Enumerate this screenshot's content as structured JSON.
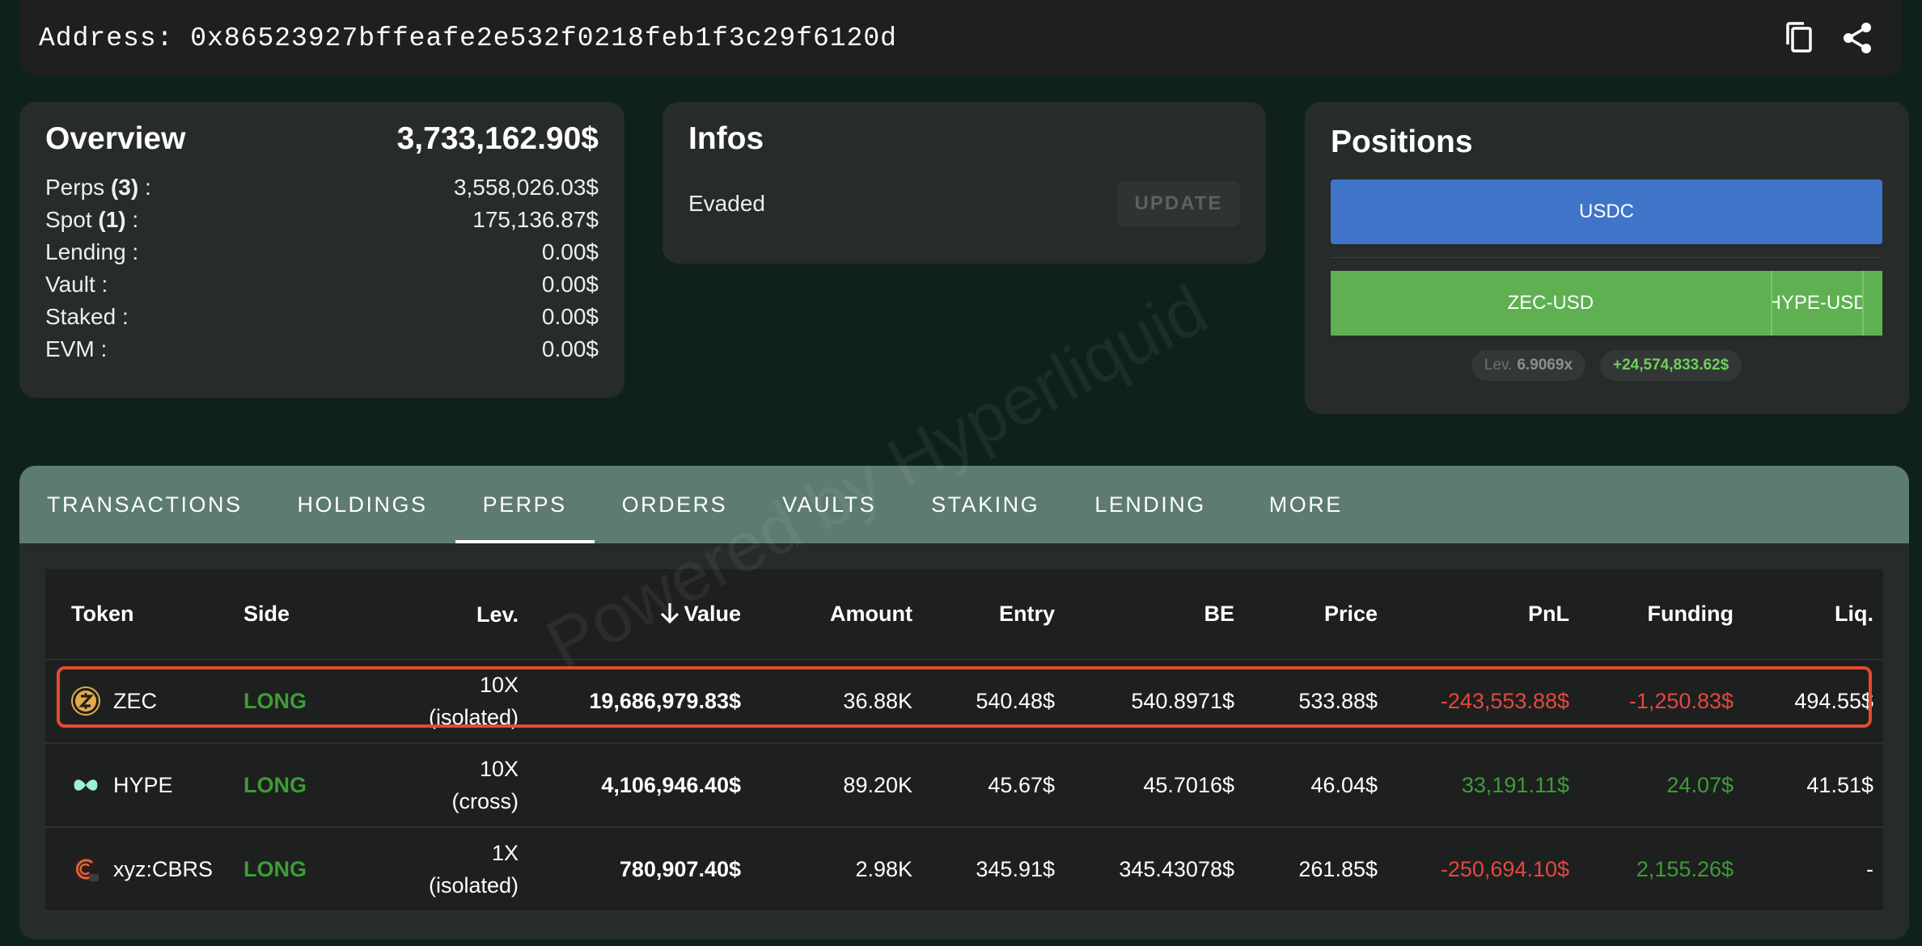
{
  "address": {
    "text": "Address: 0x86523927bffeafe2e532f0218feb1f3c29f6120d",
    "copy_icon": "copy-icon",
    "share_icon": "share-icon"
  },
  "overview": {
    "title": "Overview",
    "total": "3,733,162.90$",
    "rows": [
      {
        "label": "Perps",
        "count": "(3)",
        "suffix": " :",
        "value": "3,558,026.03$"
      },
      {
        "label": "Spot",
        "count": "(1)",
        "suffix": " :",
        "value": "175,136.87$"
      },
      {
        "label": "Lending :",
        "count": "",
        "suffix": "",
        "value": "0.00$"
      },
      {
        "label": "Vault :",
        "count": "",
        "suffix": "",
        "value": "0.00$"
      },
      {
        "label": "Staked :",
        "count": "",
        "suffix": "",
        "value": "0.00$"
      },
      {
        "label": "EVM :",
        "count": "",
        "suffix": "",
        "value": "0.00$"
      }
    ]
  },
  "infos": {
    "title": "Infos",
    "status": "Evaded",
    "update_label": "UPDATE"
  },
  "positions": {
    "title": "Positions",
    "usdc_label": "USDC",
    "segments": [
      {
        "label": "ZEC-USD",
        "share": 0.8
      },
      {
        "label": "HYPE-USD",
        "share": 0.167
      },
      {
        "label": "",
        "share": 0.033
      }
    ],
    "lev_prefix": "Lev.",
    "lev_value": "6.9069x",
    "pnl": "+24,574,833.62$"
  },
  "tabs": [
    "TRANSACTIONS",
    "HOLDINGS",
    "PERPS",
    "ORDERS",
    "VAULTS",
    "STAKING",
    "LENDING",
    "MORE"
  ],
  "active_tab": "PERPS",
  "table": {
    "headers": {
      "token": "Token",
      "side": "Side",
      "lev": "Lev.",
      "value": "Value",
      "amount": "Amount",
      "entry": "Entry",
      "be": "BE",
      "price": "Price",
      "pnl": "PnL",
      "funding": "Funding",
      "liq": "Liq."
    },
    "rows": [
      {
        "token": "ZEC",
        "icon": "zec-coin-icon",
        "side": "LONG",
        "lev_x": "10X",
        "lev_mode": "(isolated)",
        "value": "19,686,979.83$",
        "amount": "36.88K",
        "entry": "540.48$",
        "be": "540.8971$",
        "price": "533.88$",
        "pnl": "-243,553.88$",
        "funding": "-1,250.83$",
        "liq": "494.55$"
      },
      {
        "token": "HYPE",
        "icon": "hype-icon",
        "side": "LONG",
        "lev_x": "10X",
        "lev_mode": "(cross)",
        "value": "4,106,946.40$",
        "amount": "89.20K",
        "entry": "45.67$",
        "be": "45.7016$",
        "price": "46.04$",
        "pnl": "33,191.11$",
        "funding": "24.07$",
        "liq": "41.51$"
      },
      {
        "token": "xyz:CBRS",
        "icon": "cbrs-icon",
        "side": "LONG",
        "lev_x": "1X",
        "lev_mode": "(isolated)",
        "value": "780,907.40$",
        "amount": "2.98K",
        "entry": "345.91$",
        "be": "345.43078$",
        "price": "261.85$",
        "pnl": "-250,694.10$",
        "funding": "2,155.26$",
        "liq": "-"
      }
    ]
  },
  "watermark": "Powered by Hyperliquid",
  "colors": {
    "long": "#3f9b38",
    "negative": "#e5473f",
    "usdc_bar": "#3f74c9",
    "perp_bar": "#5eb051",
    "highlight": "#e44a2f"
  }
}
